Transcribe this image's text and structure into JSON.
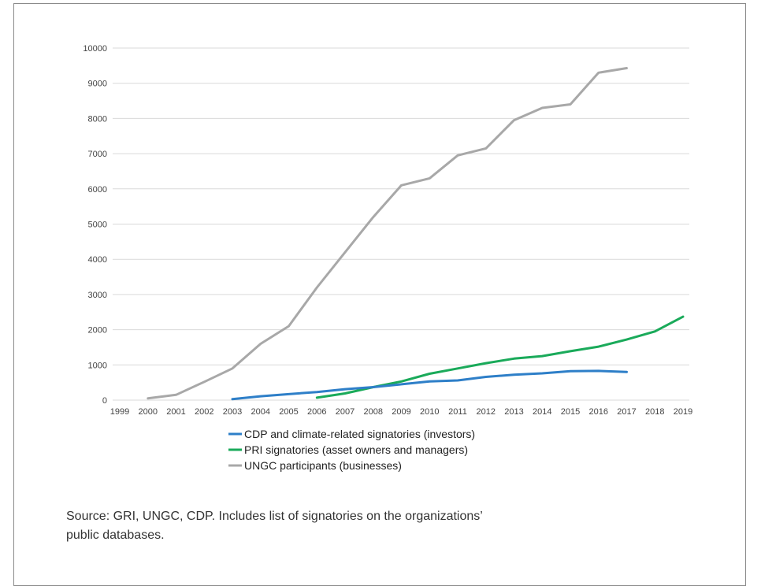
{
  "chart_data": {
    "type": "line",
    "title": "",
    "xlabel": "",
    "ylabel": "",
    "x": [
      1999,
      2000,
      2001,
      2002,
      2003,
      2004,
      2005,
      2006,
      2007,
      2008,
      2009,
      2010,
      2011,
      2012,
      2013,
      2014,
      2015,
      2016,
      2017,
      2018,
      2019
    ],
    "x_tick_labels": [
      "1999",
      "2000",
      "2001",
      "2002",
      "2003",
      "2004",
      "2005",
      "2006",
      "2007",
      "2008",
      "2009",
      "2010",
      "2011",
      "2012",
      "2013",
      "2014",
      "2015",
      "2016",
      "2017",
      "2018",
      "2019"
    ],
    "ylim": [
      0,
      10000
    ],
    "y_ticks": [
      0,
      1000,
      2000,
      3000,
      4000,
      5000,
      6000,
      7000,
      8000,
      9000,
      10000
    ],
    "y_tick_labels": [
      "0",
      "1000",
      "2000",
      "3000",
      "4000",
      "5000",
      "6000",
      "7000",
      "8000",
      "9000",
      "10000"
    ],
    "grid": true,
    "legend_position": "bottom",
    "series": [
      {
        "name": "CDP and climate-related signatories (investors)",
        "color": "#2e7fc8",
        "x": [
          2003,
          2004,
          2005,
          2006,
          2007,
          2008,
          2009,
          2010,
          2011,
          2012,
          2013,
          2014,
          2015,
          2016,
          2017
        ],
        "values": [
          30,
          110,
          170,
          230,
          310,
          370,
          450,
          530,
          560,
          660,
          720,
          760,
          820,
          830,
          800
        ]
      },
      {
        "name": "PRI signatories (asset owners and managers)",
        "color": "#1aaa5a",
        "x": [
          2006,
          2007,
          2008,
          2009,
          2010,
          2011,
          2012,
          2013,
          2014,
          2015,
          2016,
          2017,
          2018,
          2019
        ],
        "values": [
          70,
          190,
          370,
          530,
          750,
          900,
          1050,
          1180,
          1250,
          1390,
          1520,
          1720,
          1950,
          2370
        ]
      },
      {
        "name": "UNGC participants (businesses)",
        "color": "#a8a8a8",
        "x": [
          2000,
          2001,
          2002,
          2003,
          2004,
          2005,
          2006,
          2007,
          2008,
          2009,
          2010,
          2011,
          2012,
          2013,
          2014,
          2015,
          2016,
          2017
        ],
        "values": [
          50,
          150,
          520,
          900,
          1600,
          2100,
          3200,
          4200,
          5200,
          6100,
          6300,
          6950,
          7150,
          7950,
          8300,
          8400,
          9300,
          9430
        ]
      }
    ]
  },
  "caption": {
    "line1": "Source: GRI, UNGC, CDP. Includes list of signatories on the organizations’",
    "line2": "public databases."
  }
}
